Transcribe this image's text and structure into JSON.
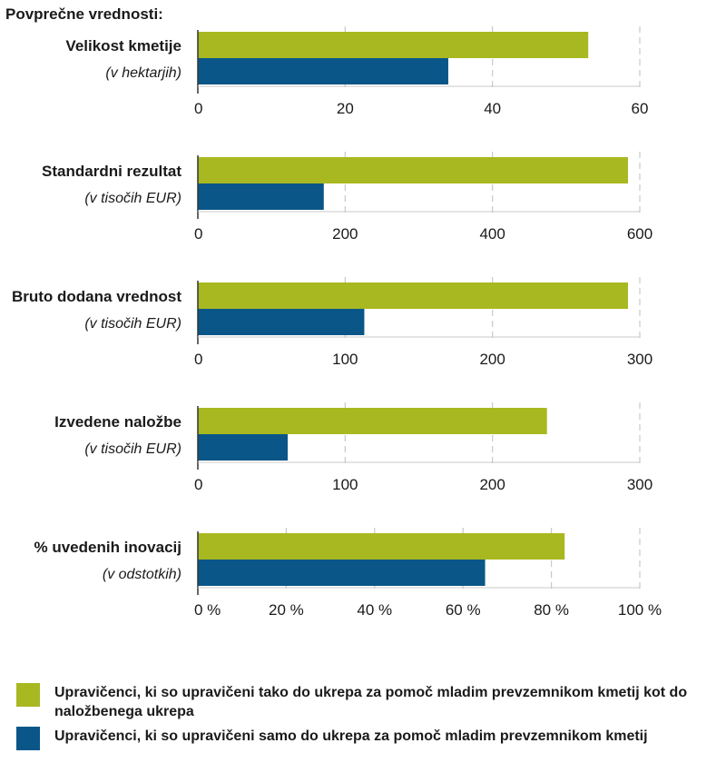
{
  "chart_data": {
    "type": "bar",
    "orientation": "horizontal",
    "title": "Povprečne vrednosti:",
    "colors": {
      "series1": "#a8b820",
      "series2": "#0a5688",
      "grid": "#c8c8c8",
      "axis": "#333333"
    },
    "series": [
      {
        "name": "Upravičenci, ki so upravičeni tako do ukrepa za pomoč mladim prevzemnikom kmetij kot do naložbenega ukrepa"
      },
      {
        "name": "Upravičenci, ki so upravičeni samo do ukrepa za pomoč mladim prevzemnikom kmetij"
      }
    ],
    "panels": [
      {
        "label": "Velikost kmetije",
        "unit": "(v hektarjih)",
        "values": [
          53,
          34
        ],
        "xlim": [
          0,
          60
        ],
        "ticks": [
          0,
          20,
          40,
          60
        ],
        "tick_labels": [
          "0",
          "20",
          "40",
          "60"
        ]
      },
      {
        "label": "Standardni rezultat",
        "unit": "(v tisočih EUR)",
        "values": [
          584,
          171
        ],
        "xlim": [
          0,
          600
        ],
        "ticks": [
          0,
          200,
          400,
          600
        ],
        "tick_labels": [
          "0",
          "200",
          "400",
          "600"
        ]
      },
      {
        "label": "Bruto dodana vrednost",
        "unit": "(v tisočih EUR)",
        "values": [
          292,
          113
        ],
        "xlim": [
          0,
          300
        ],
        "ticks": [
          0,
          100,
          200,
          300
        ],
        "tick_labels": [
          "0",
          "100",
          "200",
          "300"
        ]
      },
      {
        "label": "Izvedene naložbe",
        "unit": "(v tisočih EUR)",
        "values": [
          237,
          61
        ],
        "xlim": [
          0,
          300
        ],
        "ticks": [
          0,
          100,
          200,
          300
        ],
        "tick_labels": [
          "0",
          "100",
          "200",
          "300"
        ]
      },
      {
        "label": "% uvedenih inovacij",
        "unit": "(v odstotkih)",
        "values": [
          83,
          65
        ],
        "xlim": [
          0,
          100
        ],
        "ticks": [
          0,
          20,
          40,
          60,
          80,
          100
        ],
        "tick_labels": [
          "0 %",
          "20 %",
          "40 %",
          "60 %",
          "80 %",
          "100 %"
        ]
      }
    ],
    "grid": true,
    "legend": "bottom"
  }
}
